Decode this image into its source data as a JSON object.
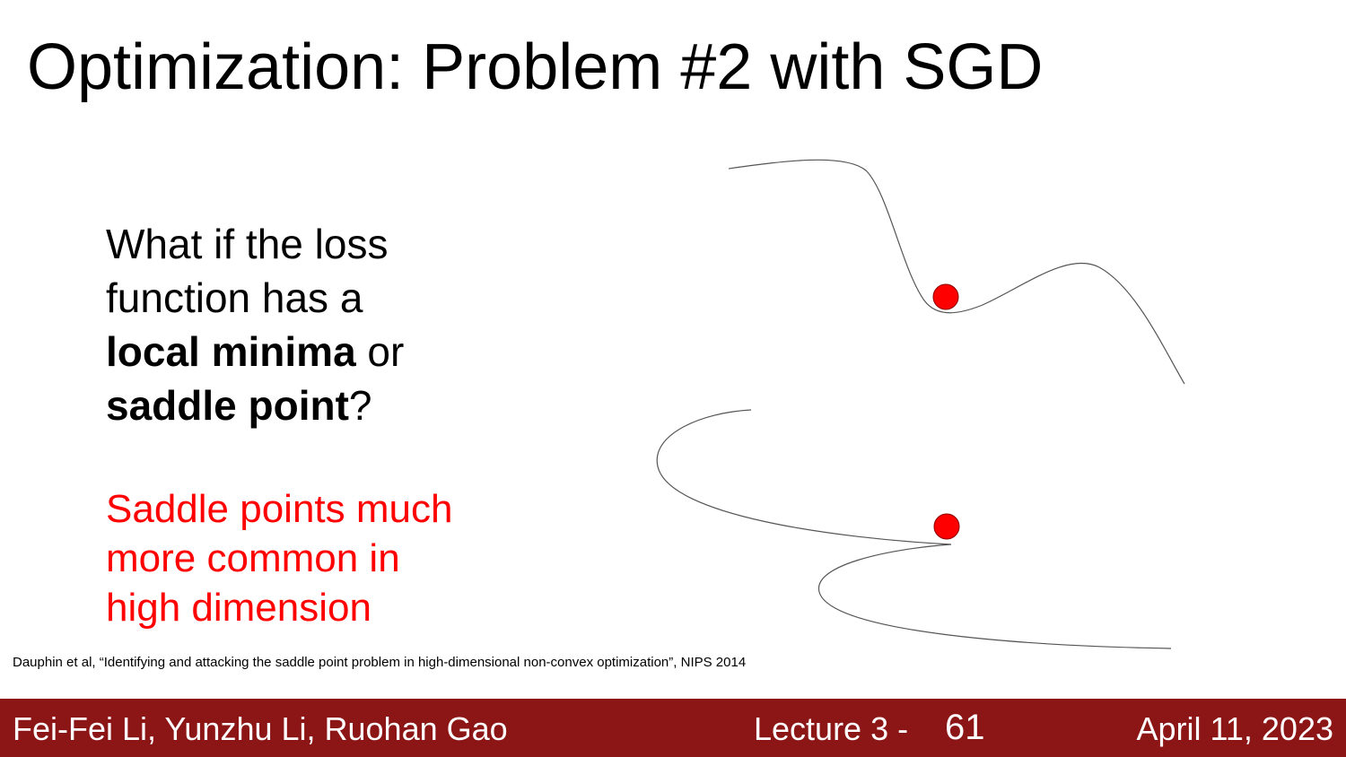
{
  "slide": {
    "title": "Optimization: Problem #2 with SGD",
    "question": {
      "line1": "What if the loss",
      "line2": "function has a",
      "bold1": "local minima",
      "after_bold1": " or",
      "bold2": "saddle point",
      "after_bold2": "?"
    },
    "note": {
      "line1": "Saddle points much",
      "line2": "more common in",
      "line3": "high dimension"
    },
    "citation": "Dauphin et al, “Identifying and attacking the saddle point problem in high-dimensional non-convex optimization”, NIPS 2014"
  },
  "figure": {
    "curve_color": "#555555",
    "ball_color": "#ff0000"
  },
  "footer": {
    "authors": "Fei-Fei Li, Yunzhu Li, Ruohan Gao",
    "lecture": "Lecture 3 -",
    "page": "61",
    "date": "April 11, 2023",
    "background": "#8c1515"
  }
}
